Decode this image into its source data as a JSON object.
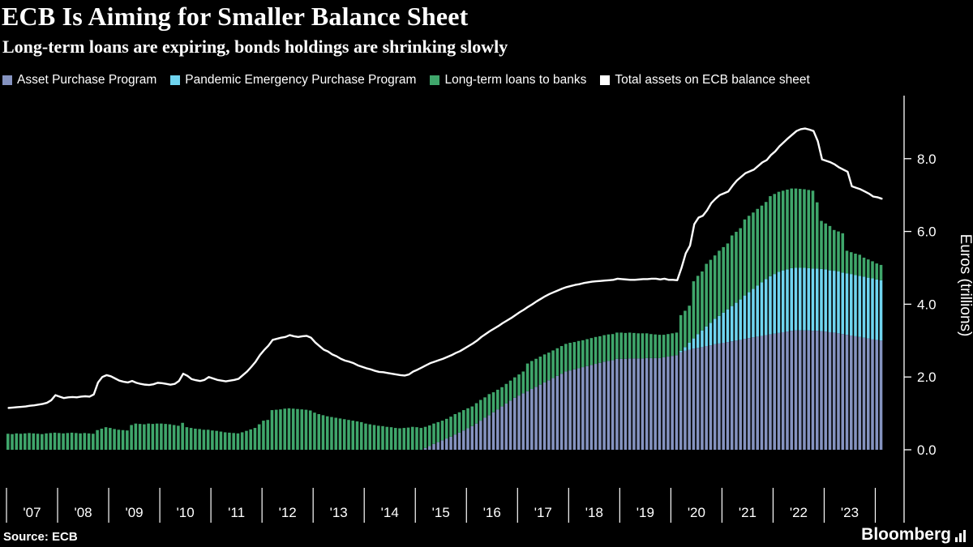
{
  "header": {
    "title": "ECB Is Aiming for Smaller Balance Sheet",
    "subtitle": "Long-term loans are expiring, bonds holdings are shrinking slowly"
  },
  "legend": [
    {
      "label": "Asset Purchase Program",
      "color": "#8593c0"
    },
    {
      "label": "Pandemic Emergency Purchase Program",
      "color": "#6fd4ef"
    },
    {
      "label": "Long-term loans to banks",
      "color": "#3fa66b"
    },
    {
      "label": "Total assets on ECB balance sheet",
      "color": "#ffffff"
    }
  ],
  "footer": {
    "source": "Source: ECB",
    "brand": "Bloomberg"
  },
  "chart_data": {
    "type": "bar",
    "subtype": "stacked monthly bars with total line overlay",
    "start": "2007-01",
    "frequency": "monthly",
    "title": "ECB Is Aiming for Smaller Balance Sheet",
    "xlabel": "",
    "ylabel": "Euros (trillions)",
    "yticks": [
      0.0,
      2.0,
      4.0,
      6.0,
      8.0
    ],
    "ylim": [
      0,
      9.7
    ],
    "grid": false,
    "legend_position": "top",
    "x_year_labels": [
      "'07",
      "'08",
      "'09",
      "'10",
      "'11",
      "'12",
      "'13",
      "'14",
      "'15",
      "'16",
      "'17",
      "'18",
      "'19",
      "'20",
      "'21",
      "'22",
      "'23"
    ],
    "series": [
      {
        "name": "Asset Purchase Program",
        "type": "bar",
        "stack": true,
        "color": "#8593c0",
        "values": [
          0,
          0,
          0,
          0,
          0,
          0,
          0,
          0,
          0,
          0,
          0,
          0,
          0,
          0,
          0,
          0,
          0,
          0,
          0,
          0,
          0,
          0,
          0,
          0,
          0,
          0,
          0,
          0,
          0,
          0,
          0,
          0,
          0,
          0,
          0,
          0,
          0,
          0,
          0,
          0,
          0,
          0,
          0,
          0,
          0,
          0,
          0,
          0,
          0,
          0,
          0,
          0,
          0,
          0,
          0,
          0,
          0,
          0,
          0,
          0,
          0,
          0,
          0,
          0,
          0,
          0,
          0,
          0,
          0,
          0,
          0,
          0,
          0,
          0,
          0,
          0,
          0,
          0,
          0,
          0,
          0,
          0,
          0,
          0,
          0,
          0,
          0,
          0,
          0,
          0,
          0,
          0,
          0,
          0,
          0,
          0,
          0,
          0,
          0.05,
          0.1,
          0.16,
          0.21,
          0.26,
          0.31,
          0.36,
          0.42,
          0.47,
          0.53,
          0.59,
          0.65,
          0.72,
          0.8,
          0.88,
          0.95,
          1.03,
          1.11,
          1.19,
          1.27,
          1.35,
          1.43,
          1.49,
          1.55,
          1.61,
          1.67,
          1.73,
          1.79,
          1.85,
          1.91,
          1.97,
          2.03,
          2.09,
          2.15,
          2.18,
          2.21,
          2.24,
          2.27,
          2.3,
          2.33,
          2.36,
          2.39,
          2.42,
          2.44,
          2.46,
          2.5,
          2.5,
          2.5,
          2.51,
          2.51,
          2.51,
          2.51,
          2.52,
          2.52,
          2.52,
          2.52,
          2.54,
          2.56,
          2.58,
          2.6,
          2.68,
          2.72,
          2.75,
          2.78,
          2.8,
          2.82,
          2.85,
          2.87,
          2.9,
          2.92,
          2.94,
          2.96,
          2.98,
          3.0,
          3.02,
          3.05,
          3.07,
          3.09,
          3.11,
          3.13,
          3.15,
          3.17,
          3.19,
          3.21,
          3.23,
          3.25,
          3.27,
          3.28,
          3.28,
          3.28,
          3.28,
          3.27,
          3.27,
          3.26,
          3.25,
          3.23,
          3.22,
          3.2,
          3.18,
          3.16,
          3.14,
          3.12,
          3.1,
          3.08,
          3.06,
          3.04,
          3.02,
          3.0
        ]
      },
      {
        "name": "Pandemic Emergency Purchase Program",
        "type": "bar",
        "stack": true,
        "color": "#6fd4ef",
        "values": [
          0,
          0,
          0,
          0,
          0,
          0,
          0,
          0,
          0,
          0,
          0,
          0,
          0,
          0,
          0,
          0,
          0,
          0,
          0,
          0,
          0,
          0,
          0,
          0,
          0,
          0,
          0,
          0,
          0,
          0,
          0,
          0,
          0,
          0,
          0,
          0,
          0,
          0,
          0,
          0,
          0,
          0,
          0,
          0,
          0,
          0,
          0,
          0,
          0,
          0,
          0,
          0,
          0,
          0,
          0,
          0,
          0,
          0,
          0,
          0,
          0,
          0,
          0,
          0,
          0,
          0,
          0,
          0,
          0,
          0,
          0,
          0,
          0,
          0,
          0,
          0,
          0,
          0,
          0,
          0,
          0,
          0,
          0,
          0,
          0,
          0,
          0,
          0,
          0,
          0,
          0,
          0,
          0,
          0,
          0,
          0,
          0,
          0,
          0,
          0,
          0,
          0,
          0,
          0,
          0,
          0,
          0,
          0,
          0,
          0,
          0,
          0,
          0,
          0,
          0,
          0,
          0,
          0,
          0,
          0,
          0,
          0,
          0,
          0,
          0,
          0,
          0,
          0,
          0,
          0,
          0,
          0,
          0,
          0,
          0,
          0,
          0,
          0,
          0,
          0,
          0,
          0,
          0,
          0,
          0,
          0,
          0,
          0,
          0,
          0,
          0,
          0,
          0,
          0,
          0,
          0,
          0,
          0,
          0.04,
          0.1,
          0.19,
          0.28,
          0.38,
          0.46,
          0.54,
          0.62,
          0.7,
          0.76,
          0.83,
          0.9,
          0.97,
          1.04,
          1.11,
          1.19,
          1.26,
          1.33,
          1.4,
          1.47,
          1.54,
          1.6,
          1.64,
          1.68,
          1.7,
          1.71,
          1.72,
          1.72,
          1.72,
          1.72,
          1.71,
          1.71,
          1.71,
          1.71,
          1.71,
          1.7,
          1.7,
          1.7,
          1.69,
          1.69,
          1.69,
          1.68,
          1.68,
          1.68,
          1.67,
          1.67,
          1.66,
          1.66
        ]
      },
      {
        "name": "Long-term loans to banks",
        "type": "bar",
        "stack": true,
        "color": "#3fa66b",
        "values": [
          0.44,
          0.43,
          0.45,
          0.44,
          0.45,
          0.46,
          0.45,
          0.44,
          0.43,
          0.45,
          0.46,
          0.47,
          0.46,
          0.45,
          0.46,
          0.47,
          0.46,
          0.45,
          0.46,
          0.45,
          0.44,
          0.54,
          0.58,
          0.62,
          0.6,
          0.57,
          0.55,
          0.54,
          0.53,
          0.68,
          0.72,
          0.71,
          0.7,
          0.72,
          0.71,
          0.72,
          0.72,
          0.71,
          0.7,
          0.68,
          0.66,
          0.74,
          0.62,
          0.6,
          0.58,
          0.57,
          0.55,
          0.55,
          0.53,
          0.52,
          0.5,
          0.48,
          0.47,
          0.46,
          0.45,
          0.48,
          0.52,
          0.56,
          0.6,
          0.7,
          0.8,
          0.82,
          1.09,
          1.1,
          1.11,
          1.13,
          1.14,
          1.13,
          1.12,
          1.11,
          1.1,
          1.08,
          1.02,
          0.98,
          0.95,
          0.92,
          0.9,
          0.88,
          0.86,
          0.84,
          0.82,
          0.8,
          0.78,
          0.76,
          0.72,
          0.7,
          0.68,
          0.66,
          0.65,
          0.63,
          0.62,
          0.6,
          0.59,
          0.6,
          0.61,
          0.63,
          0.62,
          0.6,
          0.58,
          0.57,
          0.56,
          0.55,
          0.54,
          0.54,
          0.55,
          0.56,
          0.56,
          0.56,
          0.55,
          0.54,
          0.56,
          0.57,
          0.56,
          0.58,
          0.55,
          0.54,
          0.53,
          0.54,
          0.55,
          0.56,
          0.58,
          0.6,
          0.76,
          0.77,
          0.77,
          0.77,
          0.77,
          0.76,
          0.76,
          0.76,
          0.76,
          0.76,
          0.76,
          0.75,
          0.75,
          0.74,
          0.74,
          0.74,
          0.74,
          0.73,
          0.73,
          0.73,
          0.72,
          0.72,
          0.72,
          0.71,
          0.71,
          0.7,
          0.69,
          0.69,
          0.68,
          0.66,
          0.65,
          0.64,
          0.62,
          0.62,
          0.62,
          0.62,
          0.98,
          1.0,
          1.02,
          1.57,
          1.6,
          1.62,
          1.72,
          1.73,
          1.74,
          1.79,
          1.8,
          1.81,
          1.94,
          1.95,
          1.96,
          2.09,
          2.1,
          2.1,
          2.11,
          2.11,
          2.12,
          2.2,
          2.2,
          2.2,
          2.19,
          2.19,
          2.19,
          2.18,
          2.17,
          2.16,
          2.15,
          2.14,
          1.82,
          1.32,
          1.26,
          1.22,
          1.12,
          1.1,
          1.08,
          0.62,
          0.6,
          0.59,
          0.58,
          0.52,
          0.5,
          0.47,
          0.44,
          0.42
        ]
      },
      {
        "name": "Total assets on ECB balance sheet",
        "type": "line",
        "color": "#ffffff",
        "values": [
          1.15,
          1.16,
          1.17,
          1.18,
          1.19,
          1.21,
          1.22,
          1.24,
          1.26,
          1.29,
          1.36,
          1.5,
          1.46,
          1.42,
          1.44,
          1.45,
          1.44,
          1.46,
          1.47,
          1.46,
          1.52,
          1.85,
          2.0,
          2.05,
          2.02,
          1.96,
          1.9,
          1.87,
          1.85,
          1.89,
          1.84,
          1.81,
          1.79,
          1.78,
          1.8,
          1.84,
          1.83,
          1.81,
          1.79,
          1.81,
          1.89,
          2.09,
          2.03,
          1.94,
          1.91,
          1.89,
          1.92,
          2.0,
          1.96,
          1.92,
          1.9,
          1.88,
          1.9,
          1.92,
          1.95,
          2.05,
          2.15,
          2.28,
          2.42,
          2.6,
          2.74,
          2.86,
          3.02,
          3.05,
          3.08,
          3.1,
          3.15,
          3.12,
          3.1,
          3.12,
          3.13,
          3.08,
          2.95,
          2.85,
          2.75,
          2.7,
          2.62,
          2.57,
          2.5,
          2.45,
          2.42,
          2.38,
          2.32,
          2.28,
          2.24,
          2.21,
          2.17,
          2.14,
          2.13,
          2.11,
          2.09,
          2.07,
          2.05,
          2.04,
          2.07,
          2.15,
          2.2,
          2.26,
          2.32,
          2.38,
          2.42,
          2.46,
          2.5,
          2.55,
          2.6,
          2.66,
          2.71,
          2.78,
          2.85,
          2.92,
          3.0,
          3.1,
          3.18,
          3.26,
          3.33,
          3.4,
          3.48,
          3.55,
          3.62,
          3.7,
          3.78,
          3.85,
          3.93,
          4.0,
          4.08,
          4.15,
          4.22,
          4.28,
          4.33,
          4.38,
          4.43,
          4.47,
          4.5,
          4.53,
          4.55,
          4.58,
          4.6,
          4.62,
          4.63,
          4.64,
          4.65,
          4.66,
          4.67,
          4.7,
          4.69,
          4.68,
          4.67,
          4.67,
          4.68,
          4.69,
          4.69,
          4.7,
          4.7,
          4.68,
          4.7,
          4.67,
          4.67,
          4.66,
          5.0,
          5.4,
          5.61,
          6.2,
          6.38,
          6.43,
          6.58,
          6.78,
          6.9,
          7.0,
          7.05,
          7.1,
          7.26,
          7.4,
          7.5,
          7.6,
          7.65,
          7.7,
          7.8,
          7.9,
          7.96,
          8.1,
          8.2,
          8.34,
          8.45,
          8.56,
          8.66,
          8.76,
          8.81,
          8.83,
          8.8,
          8.76,
          8.48,
          7.98,
          7.94,
          7.9,
          7.84,
          7.76,
          7.7,
          7.64,
          7.24,
          7.2,
          7.16,
          7.1,
          7.04,
          6.96,
          6.94,
          6.9
        ]
      }
    ]
  }
}
